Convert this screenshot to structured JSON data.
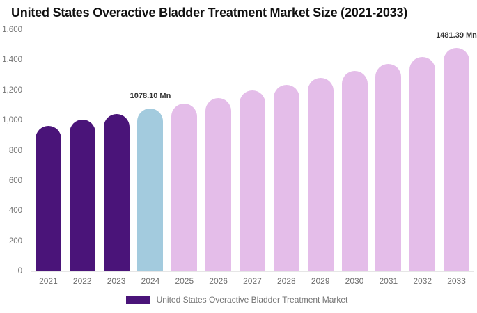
{
  "title": "United States Overactive Bladder Treatment Market Size (2021-2033)",
  "legend": {
    "label": "United States Overactive Bladder Treatment Market",
    "swatch_color": "#4A1479"
  },
  "chart_data": {
    "type": "bar",
    "title": "United States Overactive Bladder Treatment Market Size (2021-2033)",
    "unit": "Mn",
    "categories": [
      "2021",
      "2022",
      "2023",
      "2024",
      "2025",
      "2026",
      "2027",
      "2028",
      "2029",
      "2030",
      "2031",
      "2032",
      "2033"
    ],
    "values": [
      965,
      1004,
      1041,
      1078.1,
      1110,
      1148,
      1198,
      1235,
      1283,
      1330,
      1373,
      1418,
      1481.39
    ],
    "value_labels": [
      null,
      null,
      null,
      "1078.10 Mn",
      null,
      null,
      null,
      null,
      null,
      null,
      null,
      null,
      "1481.39 Mn"
    ],
    "bar_roles": [
      "historical",
      "historical",
      "historical",
      "base_year",
      "forecast",
      "forecast",
      "forecast",
      "forecast",
      "forecast",
      "forecast",
      "forecast",
      "forecast",
      "forecast"
    ],
    "colors": {
      "historical": "#4A1479",
      "base_year": "#A3CBDE",
      "forecast": "#E4BDE9"
    },
    "xlabel": "",
    "ylabel": "",
    "ylim": [
      0,
      1600
    ],
    "yticks": [
      {
        "value": 0,
        "label": "0"
      },
      {
        "value": 200,
        "label": "200"
      },
      {
        "value": 400,
        "label": "400"
      },
      {
        "value": 600,
        "label": "600"
      },
      {
        "value": 800,
        "label": "800"
      },
      {
        "value": 1000,
        "label": "1,000"
      },
      {
        "value": 1200,
        "label": "1,200"
      },
      {
        "value": 1400,
        "label": "1,400"
      },
      {
        "value": 1600,
        "label": "1,600"
      }
    ],
    "grid": false,
    "legend_position": "bottom",
    "series": [
      {
        "name": "United States Overactive Bladder Treatment Market",
        "values": [
          965,
          1004,
          1041,
          1078.1,
          1110,
          1148,
          1198,
          1235,
          1283,
          1330,
          1373,
          1418,
          1481.39
        ]
      }
    ],
    "annotations": [
      "1078.10 Mn",
      "1481.39 Mn"
    ]
  }
}
